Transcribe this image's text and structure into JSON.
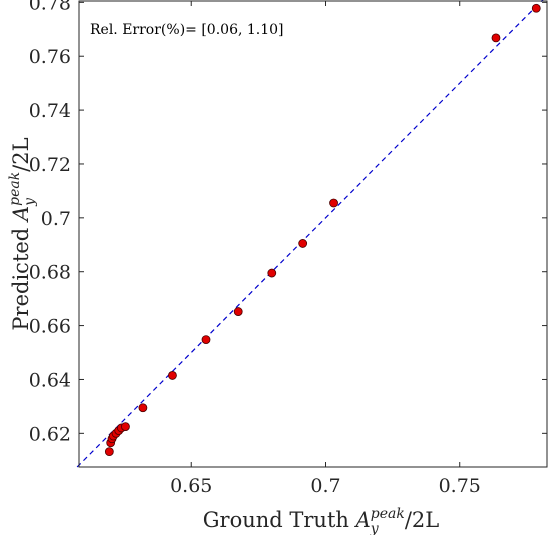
{
  "chart_data": {
    "type": "scatter",
    "title": "",
    "xlabel": "Ground Truth A_y^peak/2L",
    "ylabel": "Predicted A_y^peak/2L",
    "xlabel_parts": {
      "prefix": "Ground Truth ",
      "base": "A",
      "sub": "y",
      "sup": "peak",
      "suffix": "/2L"
    },
    "ylabel_parts": {
      "prefix": "Predicted ",
      "base": "A",
      "sub": "y",
      "sup": "peak",
      "suffix": "/2L"
    },
    "xlim": [
      0.6082,
      0.7825
    ],
    "ylim": [
      0.6075,
      0.7805
    ],
    "x_ticks": [
      0.65,
      0.7,
      0.75
    ],
    "x_tick_labels": [
      "0.65",
      "0.7",
      "0.75"
    ],
    "y_ticks": [
      0.62,
      0.64,
      0.66,
      0.68,
      0.7,
      0.72,
      0.74,
      0.76,
      0.78
    ],
    "y_tick_labels": [
      "0.62",
      "0.64",
      "0.66",
      "0.68",
      "0.7",
      "0.72",
      "0.74",
      "0.76",
      "0.78"
    ],
    "grid": false,
    "annotation": "Rel. Error(%)= [0.06, 1.10]",
    "reference_line": {
      "style": "dashed",
      "color": "#0000cc",
      "from": [
        0.6075,
        0.6075
      ],
      "to": [
        0.7825,
        0.7825
      ]
    },
    "marker_color": "#e00000",
    "marker_edge": "#4a0000",
    "series": [
      {
        "points": [
          [
            0.6195,
            0.6132
          ],
          [
            0.62,
            0.6165
          ],
          [
            0.6205,
            0.618
          ],
          [
            0.621,
            0.619
          ],
          [
            0.622,
            0.62
          ],
          [
            0.623,
            0.621
          ],
          [
            0.624,
            0.622
          ],
          [
            0.6255,
            0.6225
          ],
          [
            0.632,
            0.6295
          ],
          [
            0.643,
            0.6415
          ],
          [
            0.6555,
            0.6548
          ],
          [
            0.6675,
            0.6652
          ],
          [
            0.68,
            0.6795
          ],
          [
            0.6915,
            0.6905
          ],
          [
            0.703,
            0.7055
          ],
          [
            0.7635,
            0.7668
          ],
          [
            0.7785,
            0.7778
          ]
        ]
      }
    ]
  }
}
